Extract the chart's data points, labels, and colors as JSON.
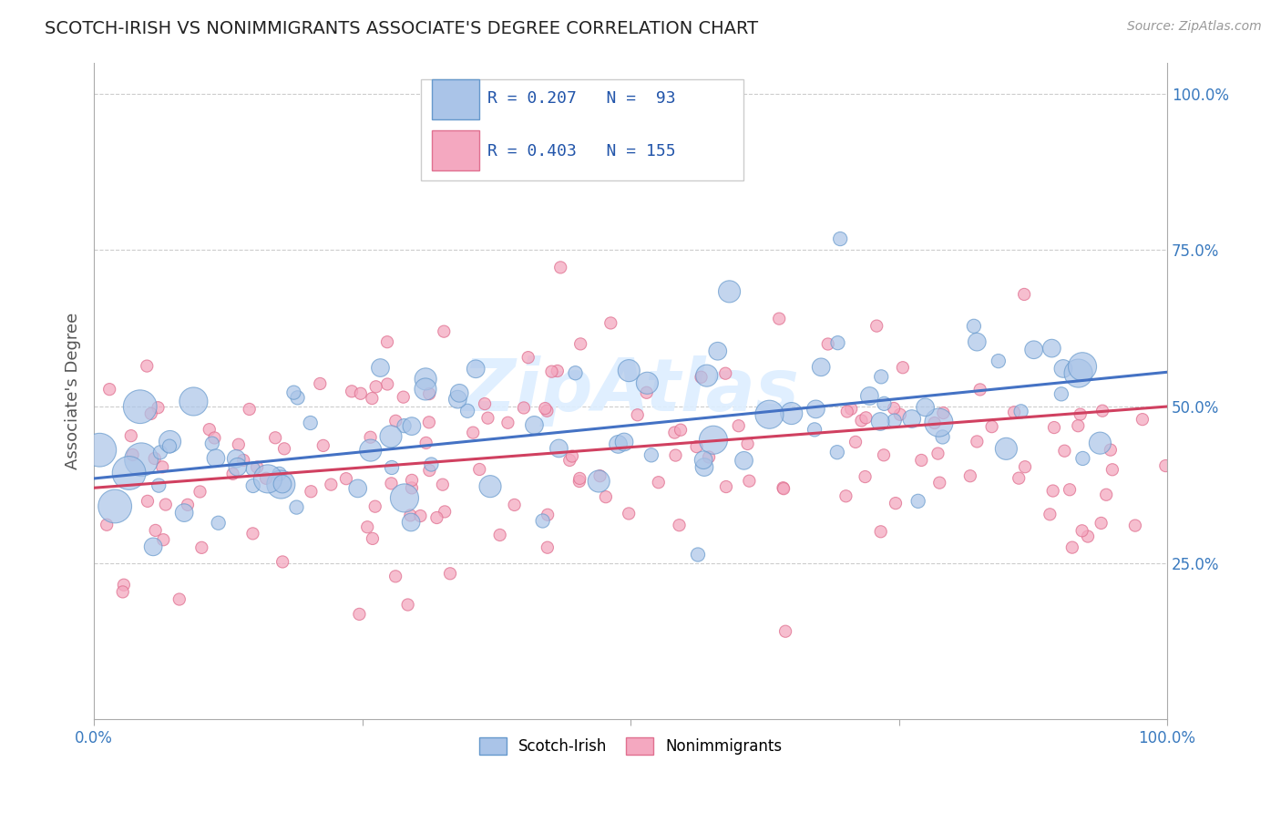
{
  "title": "SCOTCH-IRISH VS NONIMMIGRANTS ASSOCIATE'S DEGREE CORRELATION CHART",
  "source": "Source: ZipAtlas.com",
  "ylabel": "Associate's Degree",
  "legend_bottom": [
    "Scotch-Irish",
    "Nonimmigrants"
  ],
  "series1_color": "#aac4e8",
  "series2_color": "#f4a8c0",
  "series1_edge_color": "#6699cc",
  "series2_edge_color": "#e07090",
  "series1_line_color": "#4472c4",
  "series2_line_color": "#d04060",
  "watermark_color": "#ddeeff",
  "xlim": [
    0,
    1
  ],
  "ylim": [
    0,
    1.05
  ],
  "x_tick_labels": [
    "0.0%",
    "",
    "",
    "",
    "100.0%"
  ],
  "y_tick_labels": [
    "25.0%",
    "50.0%",
    "75.0%",
    "100.0%"
  ],
  "series1_R": 0.207,
  "series1_N": 93,
  "series2_R": 0.403,
  "series2_N": 155,
  "seed1": 42,
  "seed2": 77
}
